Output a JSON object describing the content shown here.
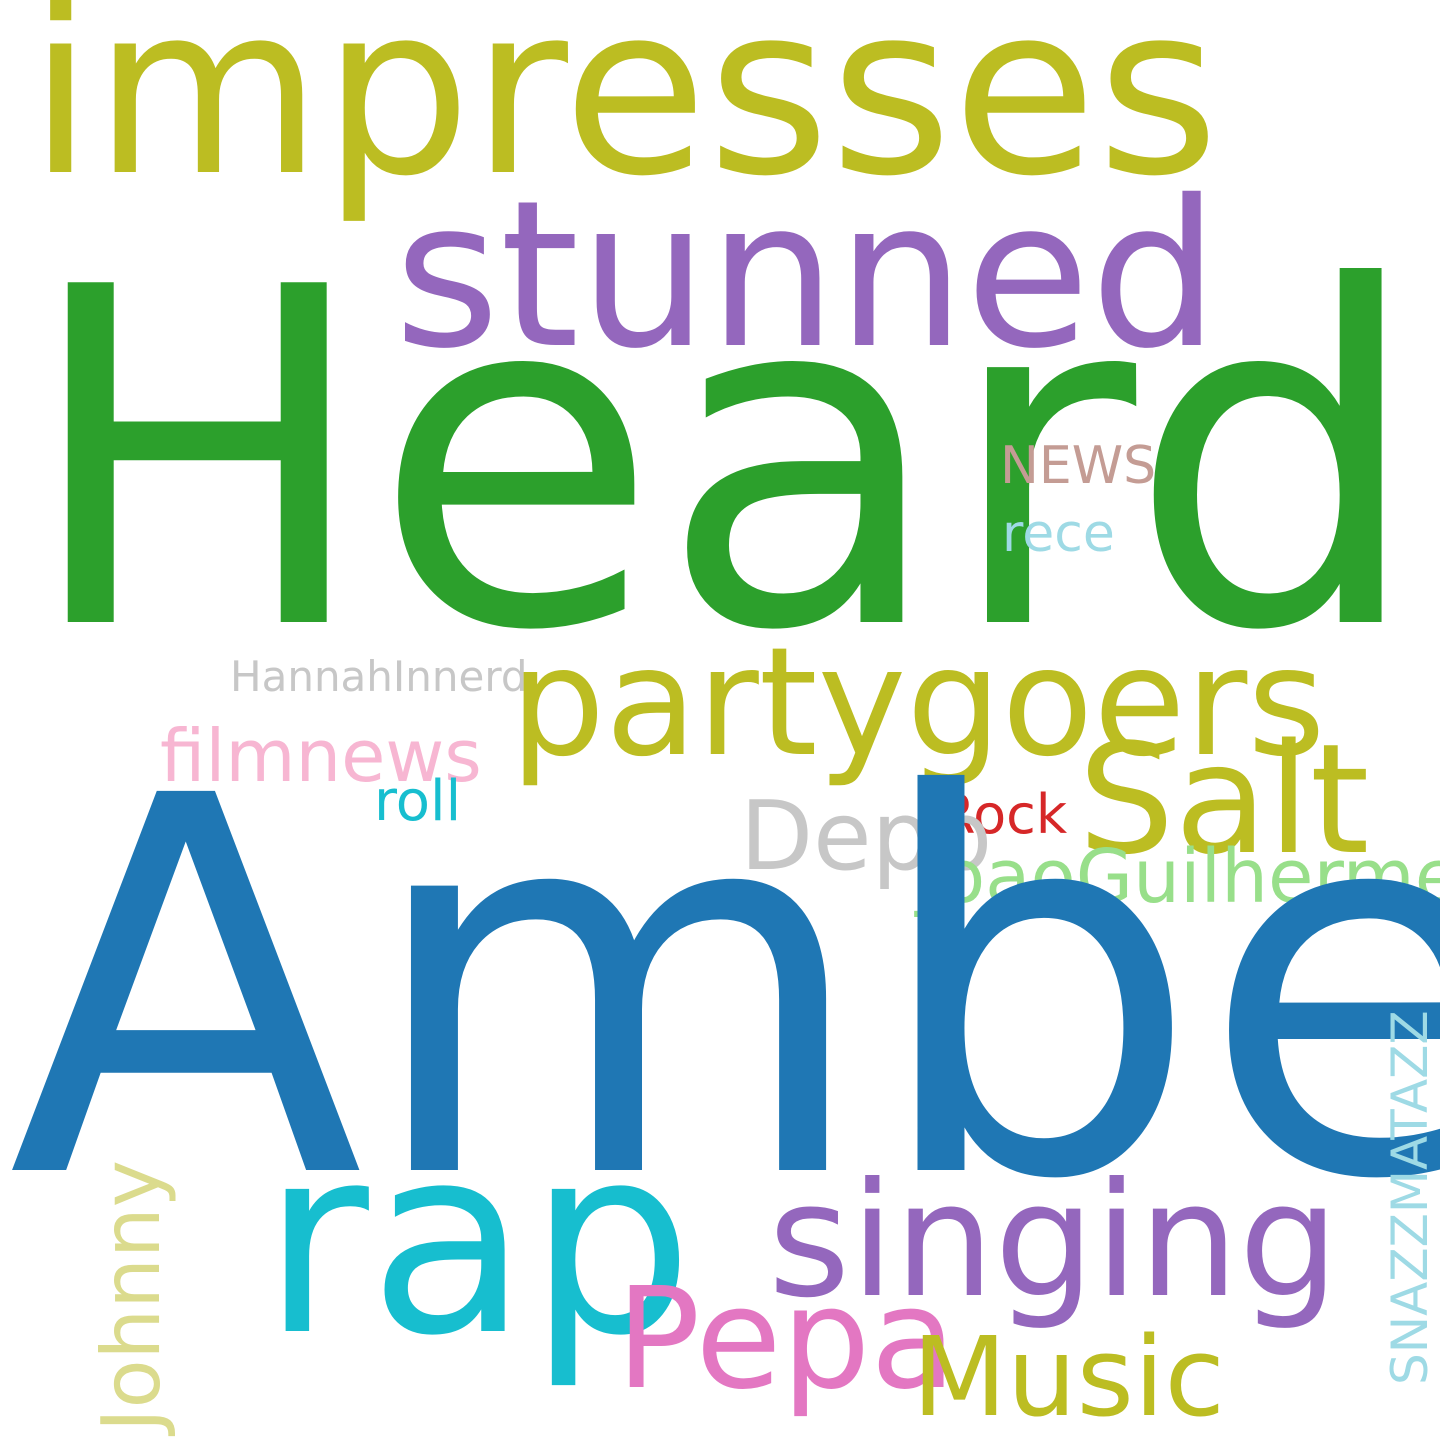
{
  "background": "#ffffff",
  "words": [
    {
      "id": "impresses",
      "text": "impresses",
      "color": "#bcbd22"
    },
    {
      "id": "stunned",
      "text": "stunned",
      "color": "#9467bd"
    },
    {
      "id": "heard",
      "text": "Heard",
      "color": "#2ca02c"
    },
    {
      "id": "news",
      "text": "NEWS",
      "color": "#c49c94"
    },
    {
      "id": "rece",
      "text": "rece",
      "color": "#9edae5"
    },
    {
      "id": "hannahinnerd",
      "text": "HannahInnerd",
      "color": "#c7c7c7"
    },
    {
      "id": "partygoers",
      "text": "partygoers",
      "color": "#bcbd22"
    },
    {
      "id": "filmnews",
      "text": "filmnews",
      "color": "#f7b6d2"
    },
    {
      "id": "salt",
      "text": "Salt",
      "color": "#bcbd22"
    },
    {
      "id": "roll",
      "text": "roll",
      "color": "#17becf"
    },
    {
      "id": "rock",
      "text": "Rock",
      "color": "#d62728"
    },
    {
      "id": "depp",
      "text": "Depp",
      "color": "#c7c7c7"
    },
    {
      "id": "joaoguilhermed",
      "text": "JoaoGuilhermed",
      "color": "#98df8a"
    },
    {
      "id": "amber",
      "text": "Amber",
      "color": "#1f77b4"
    },
    {
      "id": "snazzmatazz",
      "text": "SNAZZMATAZZ",
      "color": "#9edae5"
    },
    {
      "id": "johnny",
      "text": "Johnny",
      "color": "#dbdb8d"
    },
    {
      "id": "rap",
      "text": "rap",
      "color": "#17becf"
    },
    {
      "id": "singing",
      "text": "singing",
      "color": "#9467bd"
    },
    {
      "id": "pepa",
      "text": "Pepa",
      "color": "#e377c2"
    },
    {
      "id": "music",
      "text": "Music",
      "color": "#bcbd22"
    }
  ]
}
